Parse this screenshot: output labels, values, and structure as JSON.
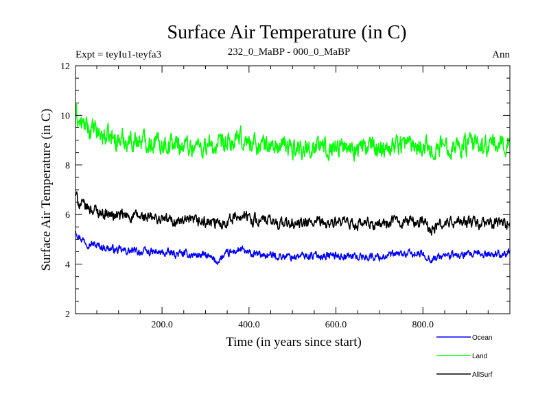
{
  "chart_data": {
    "type": "line",
    "title": "Surface Air Temperature (in C)",
    "subtitle_left": "Expt = teyIu1-teyfa3",
    "subtitle_center": "232_0_MaBP - 000_0_MaBP",
    "subtitle_right": "Ann",
    "xlabel": "Time (in years since start)",
    "ylabel": "Surface Air Temperature (in C)",
    "xlim": [
      1,
      1000
    ],
    "ylim": [
      2,
      12
    ],
    "x_ticks": [
      {
        "value": 200,
        "label": "200.0"
      },
      {
        "value": 400,
        "label": "400.0"
      },
      {
        "value": 600,
        "label": "600.0"
      },
      {
        "value": 800,
        "label": "800.0"
      }
    ],
    "y_ticks": [
      {
        "value": 2,
        "label": "2"
      },
      {
        "value": 4,
        "label": "4"
      },
      {
        "value": 6,
        "label": "6"
      },
      {
        "value": 8,
        "label": "8"
      },
      {
        "value": 10,
        "label": "10"
      },
      {
        "value": 12,
        "label": "12"
      }
    ],
    "legend_position": "bottom-right",
    "series": [
      {
        "name": "Ocean",
        "color": "#0000ff",
        "x": [
          1,
          10,
          25,
          50,
          75,
          100,
          150,
          200,
          250,
          300,
          325,
          350,
          380,
          400,
          450,
          500,
          550,
          600,
          650,
          700,
          750,
          800,
          820,
          850,
          900,
          950,
          1000
        ],
        "values": [
          5.4,
          5.1,
          4.9,
          4.75,
          4.65,
          4.55,
          4.5,
          4.45,
          4.4,
          4.35,
          4.1,
          4.4,
          4.6,
          4.4,
          4.35,
          4.3,
          4.35,
          4.35,
          4.3,
          4.3,
          4.4,
          4.4,
          4.2,
          4.35,
          4.35,
          4.4,
          4.45
        ]
      },
      {
        "name": "Land",
        "color": "#00ff00",
        "x": [
          1,
          10,
          25,
          50,
          75,
          100,
          150,
          200,
          250,
          300,
          325,
          350,
          380,
          400,
          450,
          500,
          550,
          600,
          650,
          700,
          750,
          800,
          820,
          850,
          900,
          950,
          1000
        ],
        "values": [
          10.1,
          9.7,
          9.5,
          9.3,
          9.1,
          9.0,
          9.0,
          8.9,
          8.8,
          8.75,
          8.7,
          8.8,
          9.0,
          8.9,
          8.75,
          8.7,
          8.7,
          8.75,
          8.7,
          8.7,
          8.9,
          8.85,
          8.6,
          8.8,
          8.8,
          8.75,
          8.9
        ]
      },
      {
        "name": "AllSurf",
        "color": "#000000",
        "x": [
          1,
          10,
          25,
          50,
          75,
          100,
          150,
          200,
          250,
          300,
          325,
          350,
          380,
          400,
          450,
          500,
          550,
          600,
          650,
          700,
          750,
          800,
          820,
          850,
          900,
          950,
          1000
        ],
        "values": [
          6.8,
          6.45,
          6.3,
          6.15,
          6.0,
          5.95,
          5.9,
          5.8,
          5.7,
          5.7,
          5.6,
          5.75,
          6.0,
          5.85,
          5.7,
          5.6,
          5.65,
          5.65,
          5.6,
          5.6,
          5.75,
          5.7,
          5.4,
          5.65,
          5.7,
          5.6,
          5.7
        ]
      }
    ]
  }
}
